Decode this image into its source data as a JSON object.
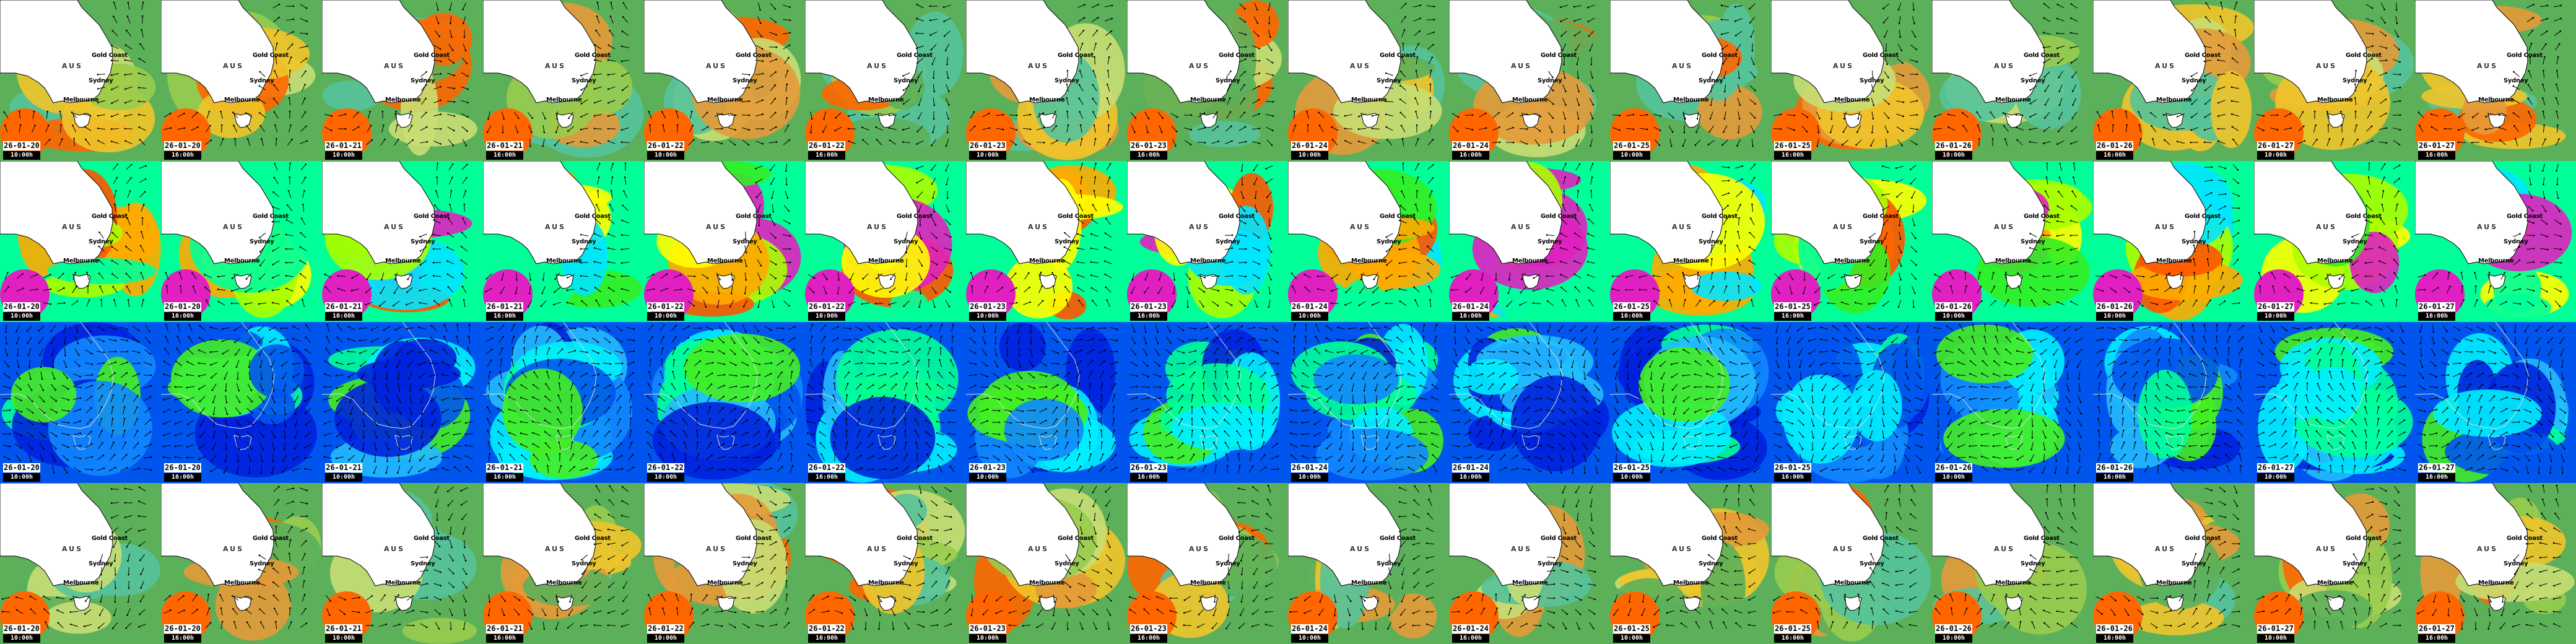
{
  "places": {
    "country": "AUS",
    "gold_coast": "Gold Coast",
    "sydney": "Sydney",
    "melbourne": "Melbourne"
  },
  "frames": [
    {
      "date": "26-01-20",
      "time": "10:00h"
    },
    {
      "date": "26-01-20",
      "time": "16:00h"
    },
    {
      "date": "26-01-21",
      "time": "10:00h"
    },
    {
      "date": "26-01-21",
      "time": "16:00h"
    },
    {
      "date": "26-01-22",
      "time": "10:00h"
    },
    {
      "date": "26-01-22",
      "time": "16:00h"
    },
    {
      "date": "26-01-23",
      "time": "10:00h"
    },
    {
      "date": "26-01-23",
      "time": "16:00h"
    },
    {
      "date": "26-01-24",
      "time": "10:00h"
    },
    {
      "date": "26-01-24",
      "time": "16:00h"
    },
    {
      "date": "26-01-25",
      "time": "10:00h"
    },
    {
      "date": "26-01-25",
      "time": "16:00h"
    },
    {
      "date": "26-01-26",
      "time": "10:00h"
    },
    {
      "date": "26-01-26",
      "time": "16:00h"
    },
    {
      "date": "26-01-27",
      "time": "10:00h"
    },
    {
      "date": "26-01-27",
      "time": "16:00h"
    }
  ],
  "rows": [
    {
      "map": "regional",
      "show_places": true,
      "palette": [
        "#55c39a",
        "#5cb05a",
        "#98cc4e",
        "#c8de74",
        "#f0c42a",
        "#e49a38",
        "#ff6600"
      ],
      "coast_color": "#000000"
    },
    {
      "map": "regional",
      "show_places": true,
      "palette": [
        "#00e5ff",
        "#00ff99",
        "#33ee22",
        "#aaff00",
        "#ffff00",
        "#ffaa00",
        "#ff5500",
        "#e020c0"
      ],
      "coast_color": "#000000"
    },
    {
      "map": "continental",
      "show_places": false,
      "palette": [
        "#0022dd",
        "#0055ee",
        "#1188ff",
        "#22bbff",
        "#00eeff",
        "#00ff99",
        "#44ee22"
      ],
      "coast_color": "#dddddd"
    },
    {
      "map": "regional",
      "show_places": true,
      "palette": [
        "#55c39a",
        "#5cb05a",
        "#98cc4e",
        "#c8de74",
        "#f0c42a",
        "#e49a38",
        "#ff6600"
      ],
      "coast_color": "#000000"
    }
  ]
}
